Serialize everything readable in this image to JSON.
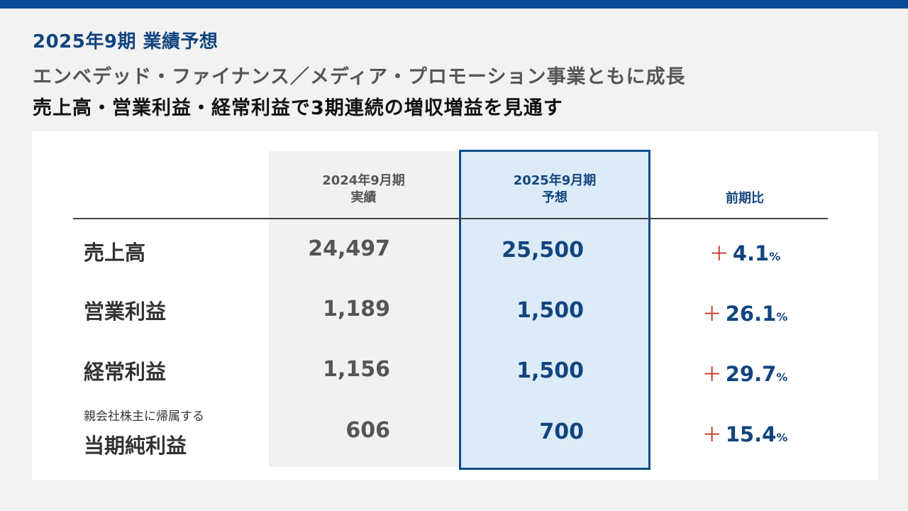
{
  "header": {
    "title": "2025年9期 業績予想",
    "subtitle1": "エンベデッド・ファイナンス／メディア・プロモーション事業ともに成長",
    "subtitle2": "売上高・営業利益・経常利益で3期連続の増収増益を見通す"
  },
  "columns": {
    "prev_line1": "2024年9月期",
    "prev_line2": "実績",
    "forecast_line1": "2025年9月期",
    "forecast_line2": "予想",
    "yoy": "前期比"
  },
  "rows": [
    {
      "label": "売上高",
      "sublabel": "",
      "prev": "24,497",
      "forecast": "25,500",
      "yoy_sign": "＋",
      "yoy_value": "4.1",
      "yoy_unit": "%"
    },
    {
      "label": "営業利益",
      "sublabel": "",
      "prev": "1,189",
      "forecast": "1,500",
      "yoy_sign": "＋",
      "yoy_value": "26.1",
      "yoy_unit": "%"
    },
    {
      "label": "経常利益",
      "sublabel": "",
      "prev": "1,156",
      "forecast": "1,500",
      "yoy_sign": "＋",
      "yoy_value": "29.7",
      "yoy_unit": "%"
    },
    {
      "label": "当期純利益",
      "sublabel": "親会社株主に帰属する",
      "prev": "606",
      "forecast": "700",
      "yoy_sign": "＋",
      "yoy_value": "15.4",
      "yoy_unit": "%"
    }
  ],
  "colors": {
    "accent": "#0a4a97",
    "title_blue": "#12457f",
    "forecast_fill": "#dcebf7",
    "plus_red": "#c0392b"
  }
}
